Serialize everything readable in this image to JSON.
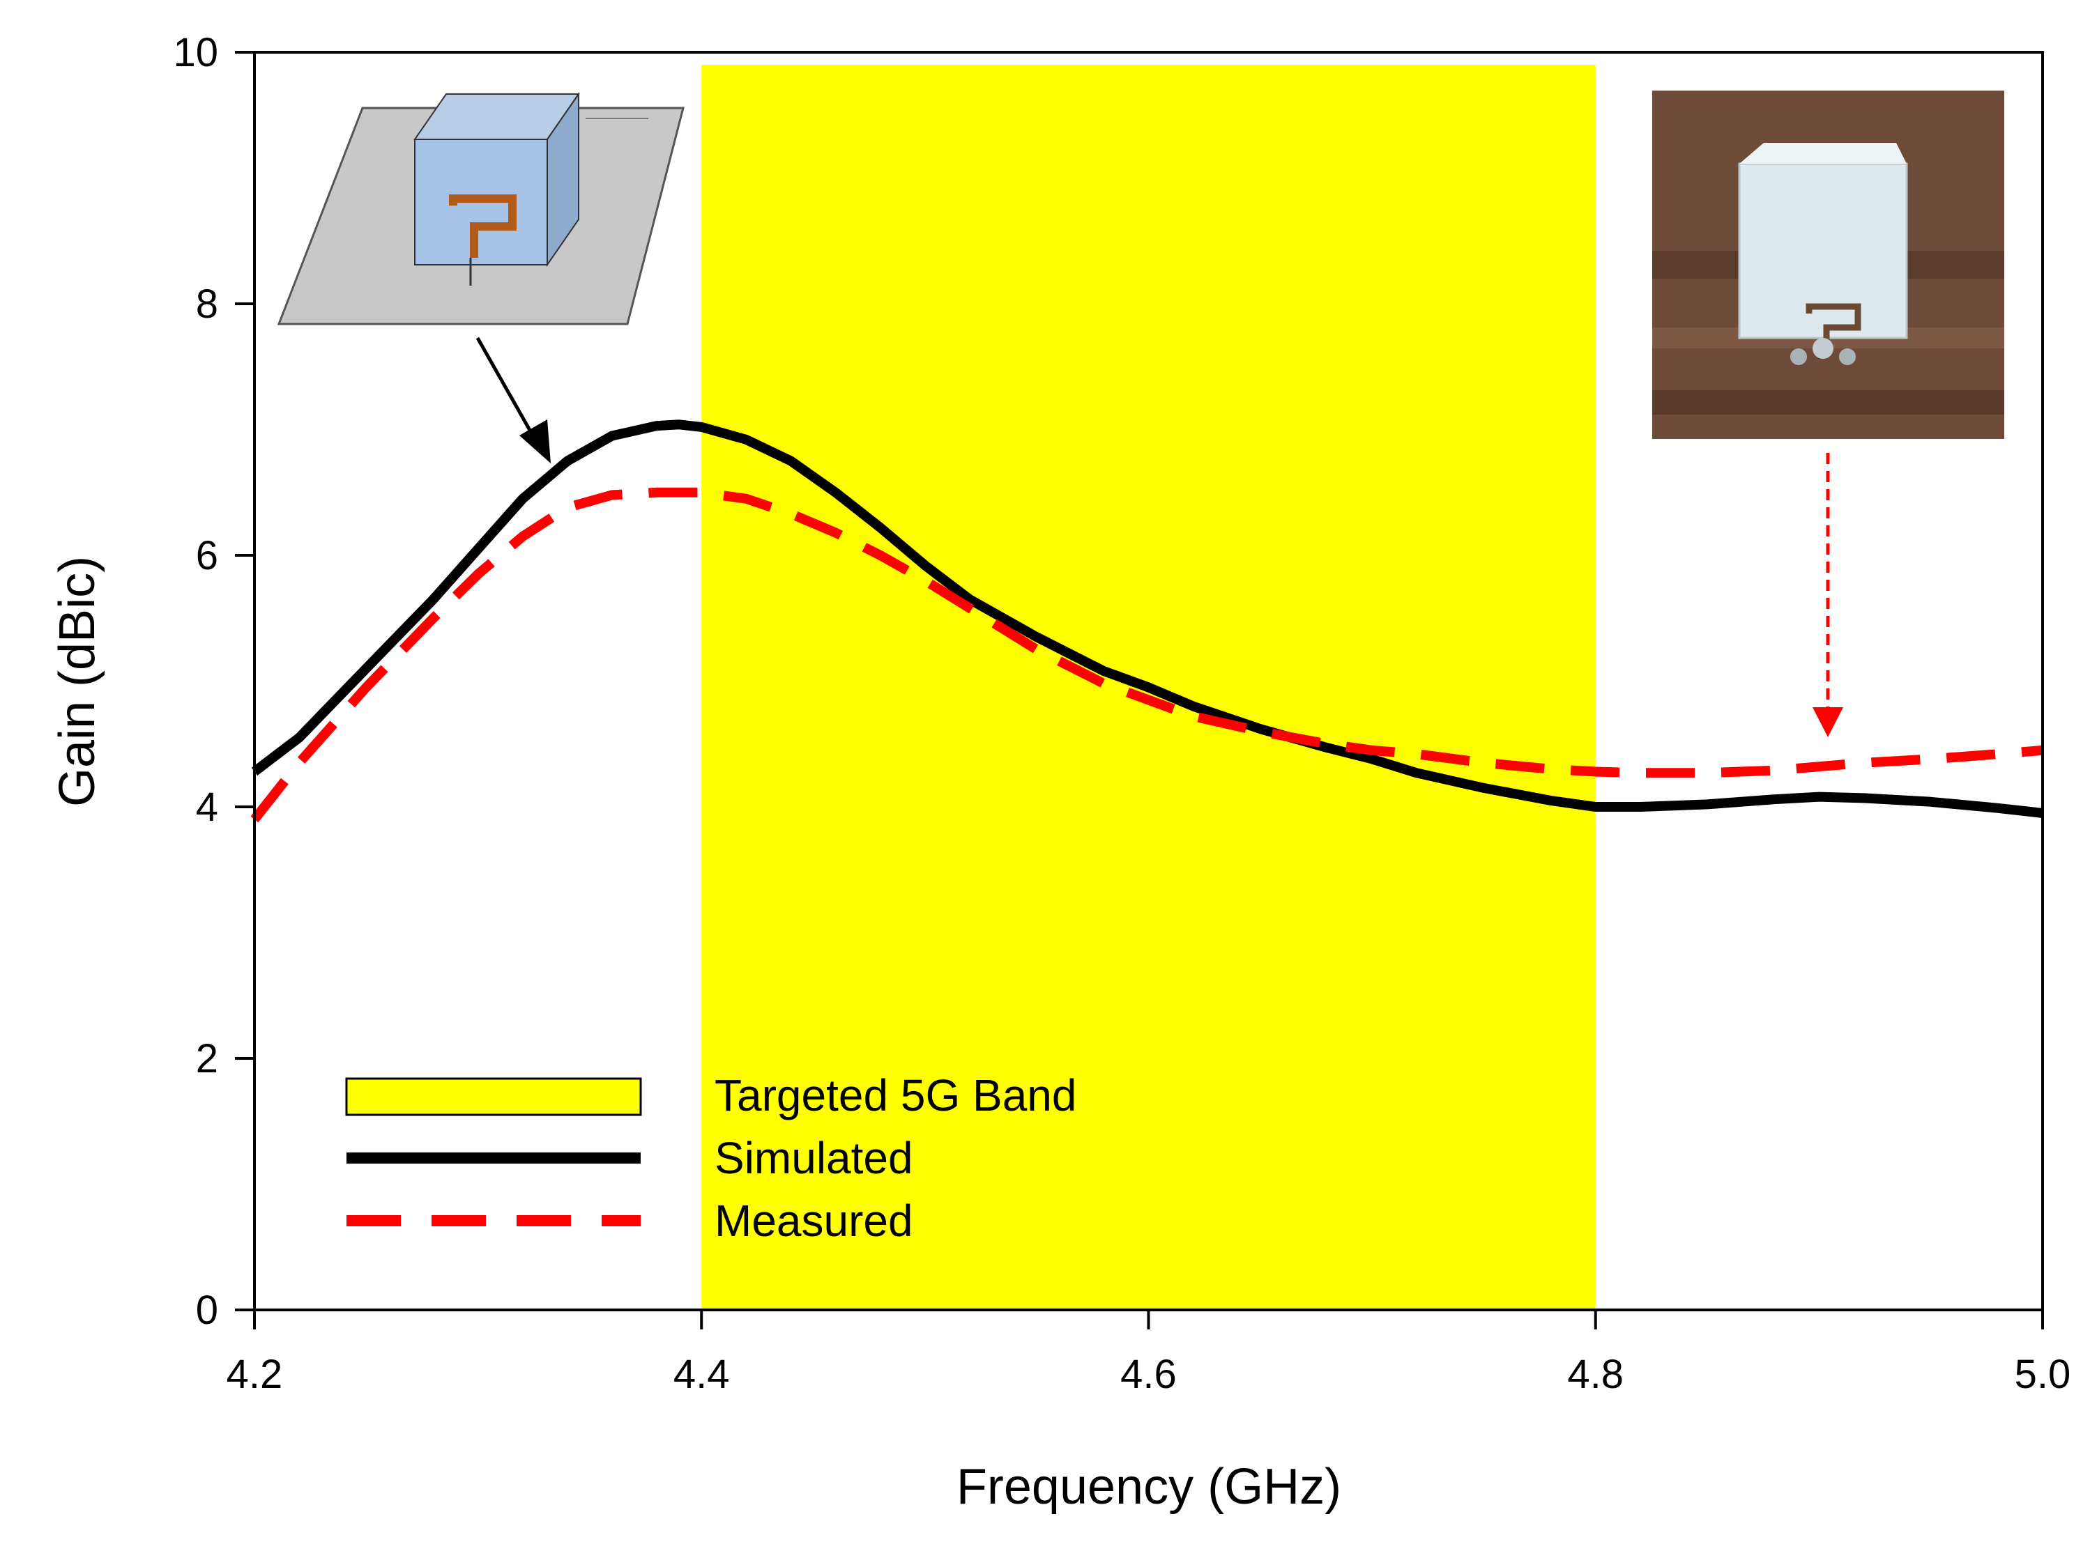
{
  "chart_data": {
    "type": "line",
    "title": "",
    "xlabel": "Frequency (GHz)",
    "ylabel": "Gain (dBic)",
    "xlim": [
      4.2,
      5.0
    ],
    "ylim": [
      0,
      10
    ],
    "xticks": [
      "4.2",
      "4.4",
      "4.6",
      "4.8",
      "5.0"
    ],
    "xtick_values": [
      4.2,
      4.4,
      4.6,
      4.8,
      5.0
    ],
    "yticks": [
      "0",
      "2",
      "4",
      "6",
      "8",
      "10"
    ],
    "ytick_values": [
      0,
      2,
      4,
      6,
      8,
      10
    ],
    "grid": false,
    "band": {
      "name": "Targeted 5G Band",
      "x_start": 4.4,
      "x_end": 4.8,
      "color": "#ffff00"
    },
    "series": [
      {
        "name": "Simulated",
        "color": "#000000",
        "style": "solid",
        "x": [
          4.2,
          4.22,
          4.25,
          4.28,
          4.3,
          4.32,
          4.34,
          4.36,
          4.38,
          4.39,
          4.4,
          4.42,
          4.44,
          4.46,
          4.48,
          4.5,
          4.52,
          4.55,
          4.58,
          4.6,
          4.62,
          4.65,
          4.68,
          4.7,
          4.72,
          4.75,
          4.78,
          4.8,
          4.82,
          4.85,
          4.88,
          4.9,
          4.92,
          4.95,
          4.98,
          5.0
        ],
        "y": [
          4.28,
          4.55,
          5.1,
          5.65,
          6.05,
          6.45,
          6.75,
          6.95,
          7.03,
          7.04,
          7.02,
          6.92,
          6.75,
          6.5,
          6.22,
          5.92,
          5.65,
          5.35,
          5.08,
          4.95,
          4.8,
          4.62,
          4.47,
          4.38,
          4.27,
          4.15,
          4.05,
          4.0,
          4.0,
          4.02,
          4.06,
          4.08,
          4.07,
          4.04,
          3.99,
          3.95
        ]
      },
      {
        "name": "Measured",
        "color": "#ff0000",
        "style": "dashed",
        "x": [
          4.2,
          4.22,
          4.25,
          4.28,
          4.3,
          4.32,
          4.34,
          4.36,
          4.38,
          4.4,
          4.42,
          4.44,
          4.46,
          4.48,
          4.5,
          4.52,
          4.55,
          4.58,
          4.6,
          4.62,
          4.65,
          4.68,
          4.7,
          4.72,
          4.75,
          4.78,
          4.8,
          4.82,
          4.85,
          4.88,
          4.9,
          4.92,
          4.95,
          4.98,
          5.0
        ],
        "y": [
          3.9,
          4.35,
          4.95,
          5.5,
          5.85,
          6.15,
          6.38,
          6.48,
          6.5,
          6.5,
          6.45,
          6.33,
          6.18,
          6.0,
          5.8,
          5.58,
          5.25,
          4.98,
          4.85,
          4.72,
          4.6,
          4.5,
          4.45,
          4.42,
          4.35,
          4.3,
          4.28,
          4.27,
          4.27,
          4.29,
          4.32,
          4.35,
          4.38,
          4.42,
          4.45
        ]
      }
    ],
    "legend": {
      "position": "bottom-left",
      "entries": [
        "Targeted 5G Band",
        "Simulated",
        "Measured"
      ]
    }
  }
}
